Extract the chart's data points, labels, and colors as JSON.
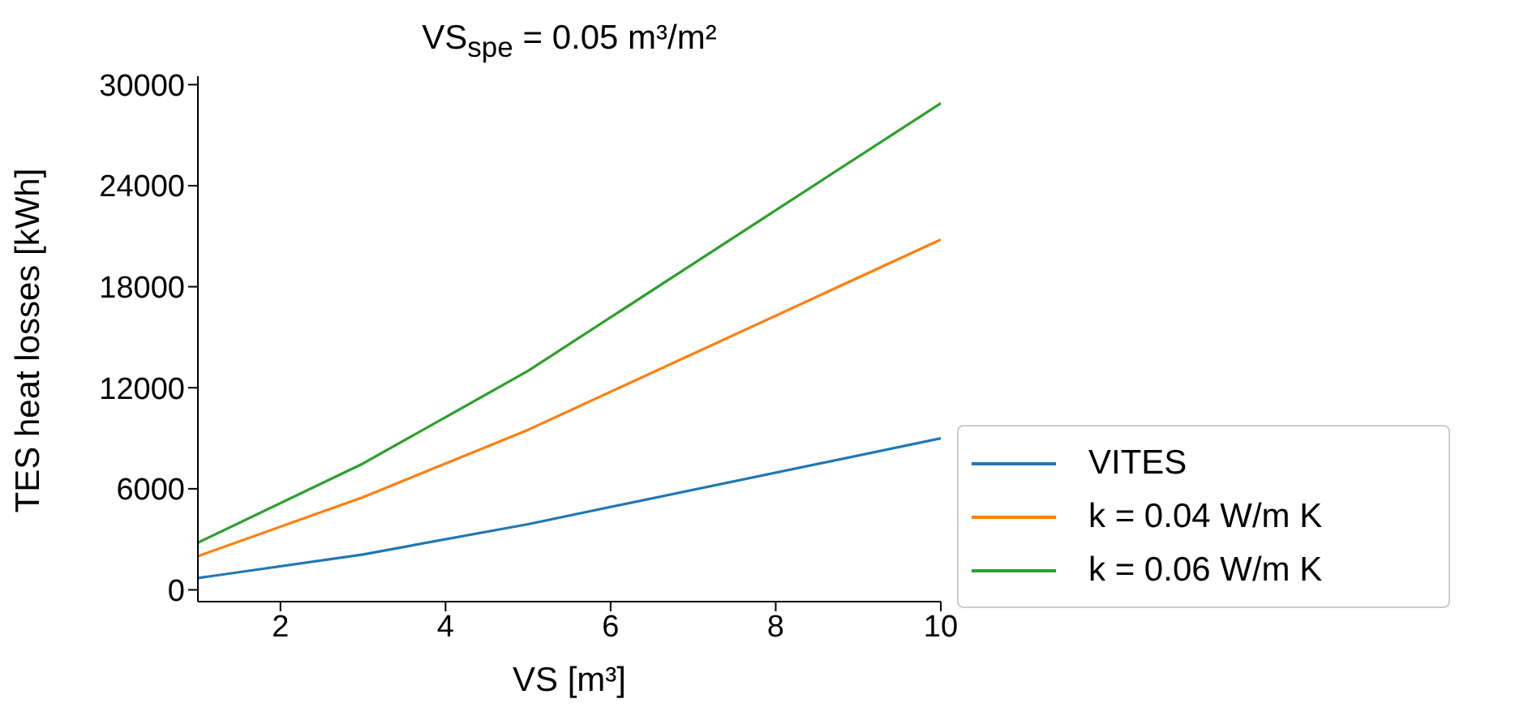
{
  "chart_data": {
    "type": "line",
    "title": "VS$_{spe}$ = 0.05 m³/m²",
    "xlabel": "VS [m³]",
    "ylabel": "TES heat losses [kWh]",
    "x": [
      1,
      3,
      5,
      10
    ],
    "series": [
      {
        "name": "VITES",
        "color": "#1f77b4",
        "values": [
          700,
          2100,
          3900,
          9000
        ]
      },
      {
        "name": "k = 0.04 W/m K",
        "color": "#ff7f0e",
        "values": [
          2000,
          5500,
          9500,
          20800
        ]
      },
      {
        "name": "k = 0.06 W/m K",
        "color": "#2ca02c",
        "values": [
          2800,
          7500,
          13000,
          28900
        ]
      }
    ],
    "xlim": [
      1,
      10
    ],
    "xticks": [
      2,
      4,
      6,
      8,
      10
    ],
    "ylim": [
      -700,
      30500
    ],
    "yticks": [
      0,
      6000,
      12000,
      18000,
      24000,
      30000
    ],
    "grid": false,
    "legend": "right",
    "marker": "none",
    "line_style": "solid"
  }
}
